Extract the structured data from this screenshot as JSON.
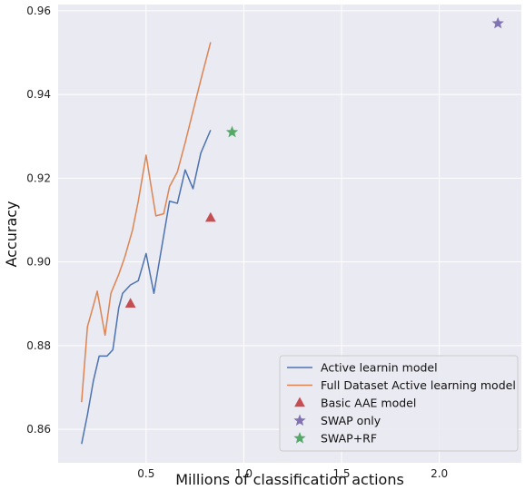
{
  "chart_data": {
    "type": "line",
    "xlabel": "Millions of classification actions",
    "ylabel": "Accuracy",
    "xlim": [
      0.05,
      2.42
    ],
    "ylim": [
      0.852,
      0.9615
    ],
    "x_ticks": [
      0.5,
      1.0,
      1.5,
      2.0
    ],
    "x_tick_labels": [
      "0.5",
      "1.0",
      "1.5",
      "2.0"
    ],
    "y_ticks": [
      0.86,
      0.88,
      0.9,
      0.92,
      0.94,
      0.96
    ],
    "y_tick_labels": [
      "0.86",
      "0.88",
      "0.90",
      "0.92",
      "0.94",
      "0.96"
    ],
    "grid": true,
    "legend_position": "bottom-right",
    "series": [
      {
        "name": "Active learnin model",
        "kind": "line",
        "color": "#4c72b0",
        "x": [
          0.17,
          0.2,
          0.23,
          0.26,
          0.3,
          0.33,
          0.36,
          0.38,
          0.42,
          0.46,
          0.5,
          0.54,
          0.58,
          0.62,
          0.66,
          0.7,
          0.74,
          0.78,
          0.83
        ],
        "y": [
          0.8565,
          0.8635,
          0.8715,
          0.8775,
          0.8775,
          0.879,
          0.889,
          0.8925,
          0.8945,
          0.8955,
          0.902,
          0.8925,
          0.9035,
          0.9145,
          0.914,
          0.922,
          0.9175,
          0.926,
          0.9315
        ]
      },
      {
        "name": "Full Dataset Active learning model",
        "kind": "line",
        "color": "#dd8452",
        "x": [
          0.17,
          0.2,
          0.23,
          0.25,
          0.29,
          0.32,
          0.36,
          0.39,
          0.43,
          0.46,
          0.5,
          0.55,
          0.59,
          0.62,
          0.66,
          0.7,
          0.74,
          0.78,
          0.83
        ],
        "y": [
          0.8665,
          0.8845,
          0.8895,
          0.893,
          0.8825,
          0.8925,
          0.897,
          0.901,
          0.9075,
          0.9145,
          0.9255,
          0.911,
          0.9115,
          0.918,
          0.9215,
          0.9285,
          0.936,
          0.9435,
          0.9525
        ]
      },
      {
        "name": "Basic AAE model",
        "kind": "marker",
        "marker": "triangle",
        "color": "#c44e52",
        "x": [
          0.42,
          0.83
        ],
        "y": [
          0.89,
          0.9105
        ]
      },
      {
        "name": "SWAP only",
        "kind": "marker",
        "marker": "star",
        "color": "#8172b3",
        "x": [
          2.3
        ],
        "y": [
          0.957
        ]
      },
      {
        "name": "SWAP+RF",
        "kind": "marker",
        "marker": "star",
        "color": "#55a868",
        "x": [
          0.94
        ],
        "y": [
          0.931
        ]
      }
    ]
  }
}
